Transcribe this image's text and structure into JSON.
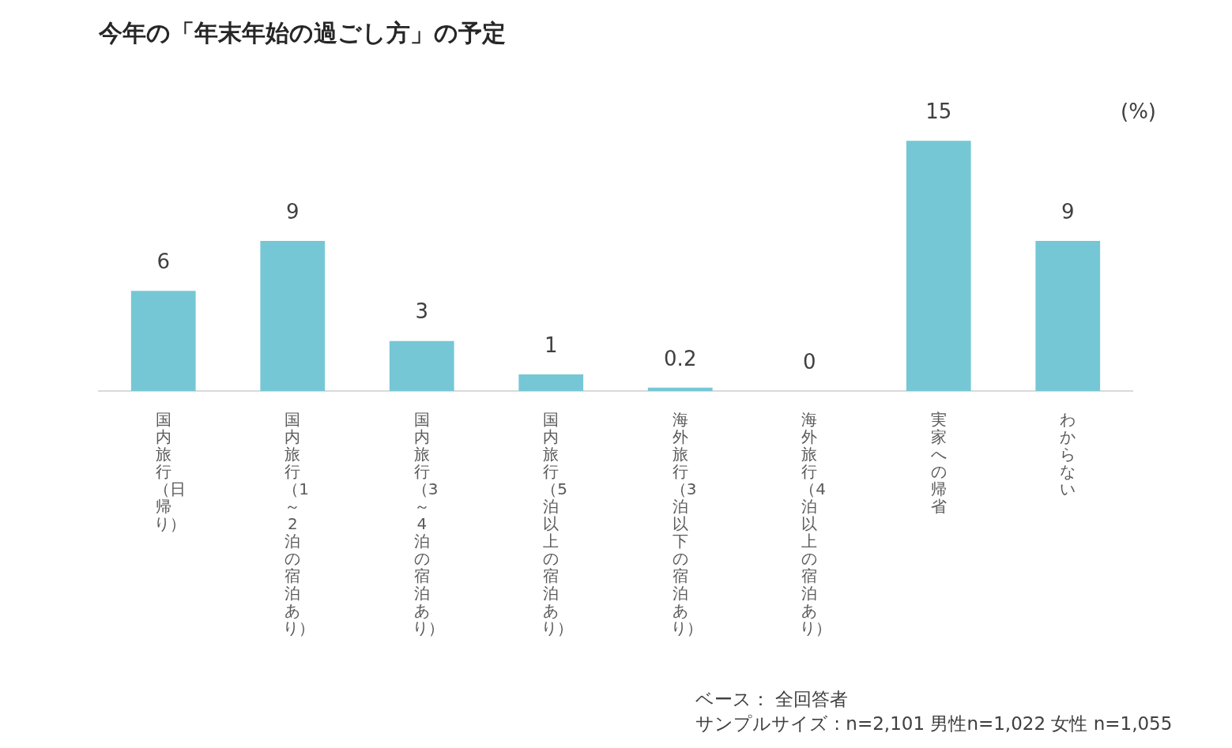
{
  "chart_data": {
    "type": "bar",
    "title": "今年の「年末年始の過ごし方」の予定",
    "ylabel": "(%)",
    "categories": [
      "国内旅行（日帰り）",
      "国内旅行（1～2泊の宿泊あり）",
      "国内旅行（3～4泊の宿泊あり）",
      "国内旅行（5泊以上の宿泊あり）",
      "海外旅行（3泊以下の宿泊あり）",
      "海外旅行（4泊以上の宿泊あり）",
      "実家への帰省",
      "わからない"
    ],
    "values": [
      6,
      9,
      3,
      1,
      0.2,
      0,
      15,
      9
    ],
    "color": "#76c7d5",
    "data_labels": true,
    "annotations": [
      "ベース： 全回答者",
      "サンプルサイズ : n=2,101 男性n=1,022 女性 n=1,055"
    ]
  }
}
